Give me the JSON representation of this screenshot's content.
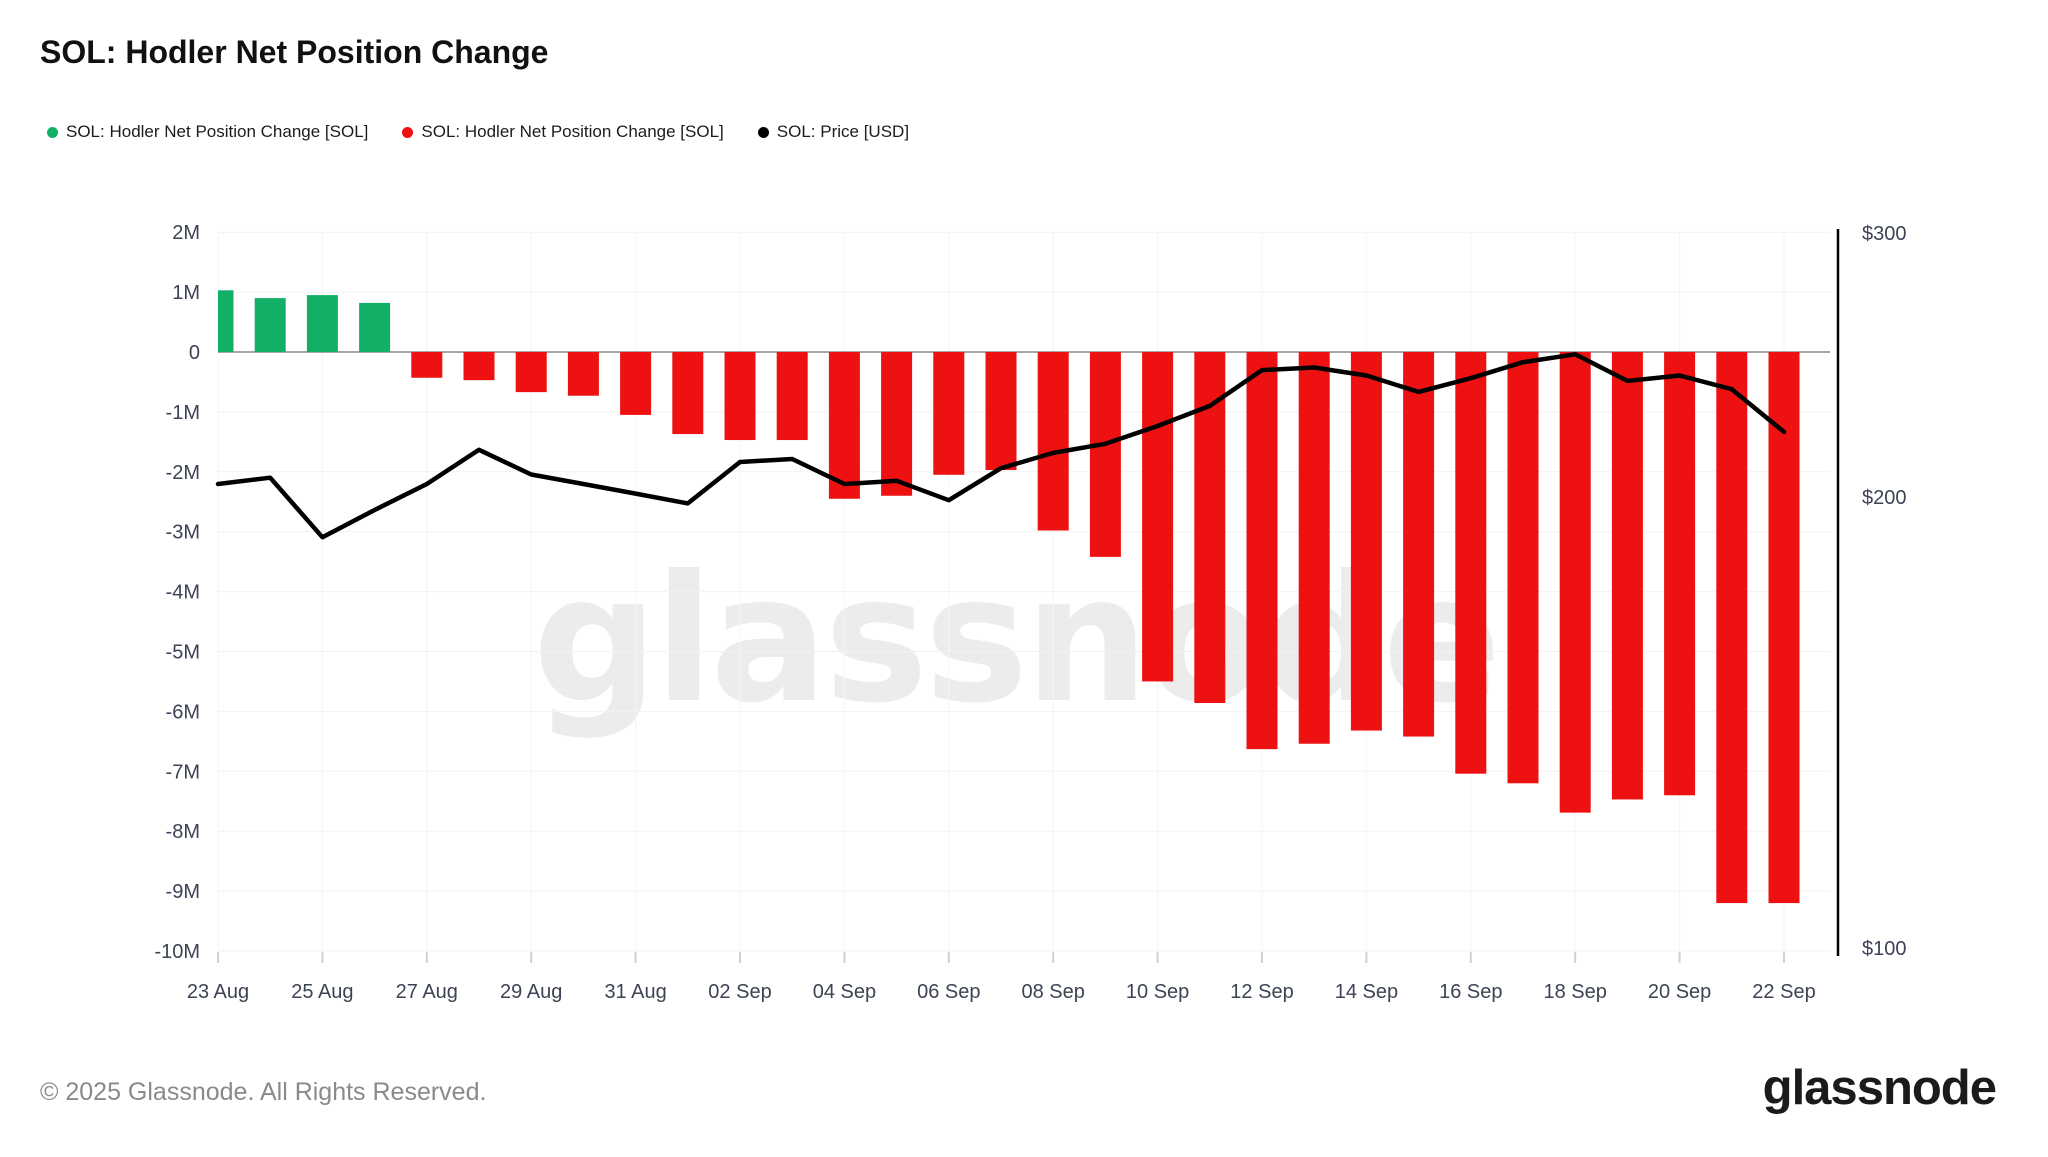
{
  "header": {
    "title": "SOL: Hodler Net Position Change"
  },
  "legend": [
    {
      "label": "SOL: Hodler Net Position Change [SOL]",
      "color": "#12b066",
      "icon": "green-dot-icon"
    },
    {
      "label": "SOL: Hodler Net Position Change [SOL]",
      "color": "#ee1111",
      "icon": "red-dot-icon"
    },
    {
      "label": "SOL: Price [USD]",
      "color": "#000000",
      "icon": "black-dot-icon"
    }
  ],
  "watermark": "glassnode",
  "footer": {
    "copyright": "© 2025 Glassnode. All Rights Reserved.",
    "logo_text": "glassnode"
  },
  "chart_data": {
    "type": "bar",
    "title": "SOL: Hodler Net Position Change",
    "categories": [
      "23 Aug",
      "24 Aug",
      "25 Aug",
      "26 Aug",
      "27 Aug",
      "28 Aug",
      "29 Aug",
      "30 Aug",
      "31 Aug",
      "01 Sep",
      "02 Sep",
      "03 Sep",
      "04 Sep",
      "05 Sep",
      "06 Sep",
      "07 Sep",
      "08 Sep",
      "09 Sep",
      "10 Sep",
      "11 Sep",
      "12 Sep",
      "13 Sep",
      "14 Sep",
      "15 Sep",
      "16 Sep",
      "17 Sep",
      "18 Sep",
      "19 Sep",
      "20 Sep",
      "21 Sep",
      "22 Sep"
    ],
    "series": [
      {
        "name": "SOL: Hodler Net Position Change [SOL]",
        "type": "bar",
        "unit": "SOL (millions)",
        "positive_color": "#12b066",
        "negative_color": "#ee1111",
        "values": [
          1.03,
          0.9,
          0.95,
          0.82,
          -0.43,
          -0.47,
          -0.67,
          -0.73,
          -1.05,
          -1.37,
          -1.47,
          -1.47,
          -2.45,
          -2.4,
          -2.05,
          -1.97,
          -2.98,
          -3.42,
          -5.5,
          -5.86,
          -6.63,
          -6.54,
          -6.32,
          -6.42,
          -7.04,
          -7.2,
          -7.69,
          -7.47,
          -7.4,
          -9.2,
          -9.2
        ]
      },
      {
        "name": "SOL: Price [USD]",
        "type": "line",
        "unit": "USD",
        "color": "#000000",
        "values": [
          204,
          206,
          188,
          196,
          204,
          215,
          207,
          204,
          201,
          198,
          211,
          212,
          204,
          205,
          199,
          209,
          214,
          217,
          223,
          230,
          243,
          244,
          241,
          235,
          240,
          246,
          249,
          239,
          241,
          236,
          221
        ]
      }
    ],
    "left_axis": {
      "tick_labels": [
        "2M",
        "1M",
        "0",
        "-1M",
        "-2M",
        "-3M",
        "-4M",
        "-5M",
        "-6M",
        "-7M",
        "-8M",
        "-9M",
        "-10M"
      ],
      "tick_values_millions": [
        2,
        1,
        0,
        -1,
        -2,
        -3,
        -4,
        -5,
        -6,
        -7,
        -8,
        -9,
        -10
      ],
      "range_millions": [
        -10,
        2
      ]
    },
    "right_axis": {
      "tick_labels": [
        "$300",
        "$200",
        "$100"
      ],
      "tick_values": [
        300,
        200,
        100
      ],
      "scale": "log",
      "range": [
        100,
        300
      ]
    },
    "x_axis": {
      "labeled_every_n_days": 2
    },
    "grid": true,
    "legend_position": "top-left",
    "colors": {
      "positive_bar": "#12b066",
      "negative_bar": "#ee1111",
      "price_line": "#000000",
      "gridline": "#f2f2f2",
      "zero_line": "#a6a6a6",
      "axis_text": "#3c4354",
      "tick_mark": "#d0d0d0",
      "right_axis_line": "#000000",
      "watermark": "#ececec"
    }
  }
}
